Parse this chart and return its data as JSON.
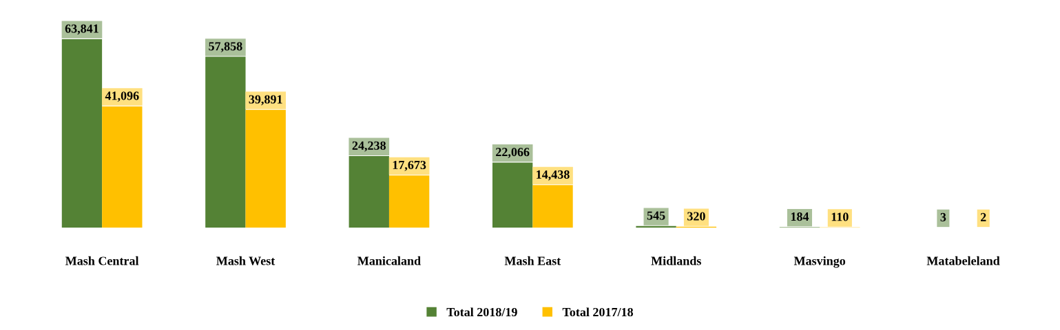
{
  "chart_data": {
    "type": "bar",
    "categories": [
      "Mash Central",
      "Mash West",
      "Manicaland",
      "Mash East",
      "Midlands",
      "Masvingo",
      "Matabeleland"
    ],
    "series": [
      {
        "name": "Total 2018/19",
        "color": "#548235",
        "values": [
          63841,
          57858,
          24238,
          22066,
          545,
          184,
          3
        ],
        "value_labels": [
          "63,841",
          "57,858",
          "24,238",
          "22,066",
          "545",
          "184",
          "3"
        ]
      },
      {
        "name": "Total 2017/18",
        "color": "#ffc000",
        "values": [
          41096,
          39891,
          17673,
          14438,
          320,
          110,
          2
        ],
        "value_labels": [
          "41,096",
          "39,891",
          "17,673",
          "14,438",
          "320",
          "110",
          "2"
        ]
      }
    ],
    "grid": false,
    "legend": "bottom"
  }
}
